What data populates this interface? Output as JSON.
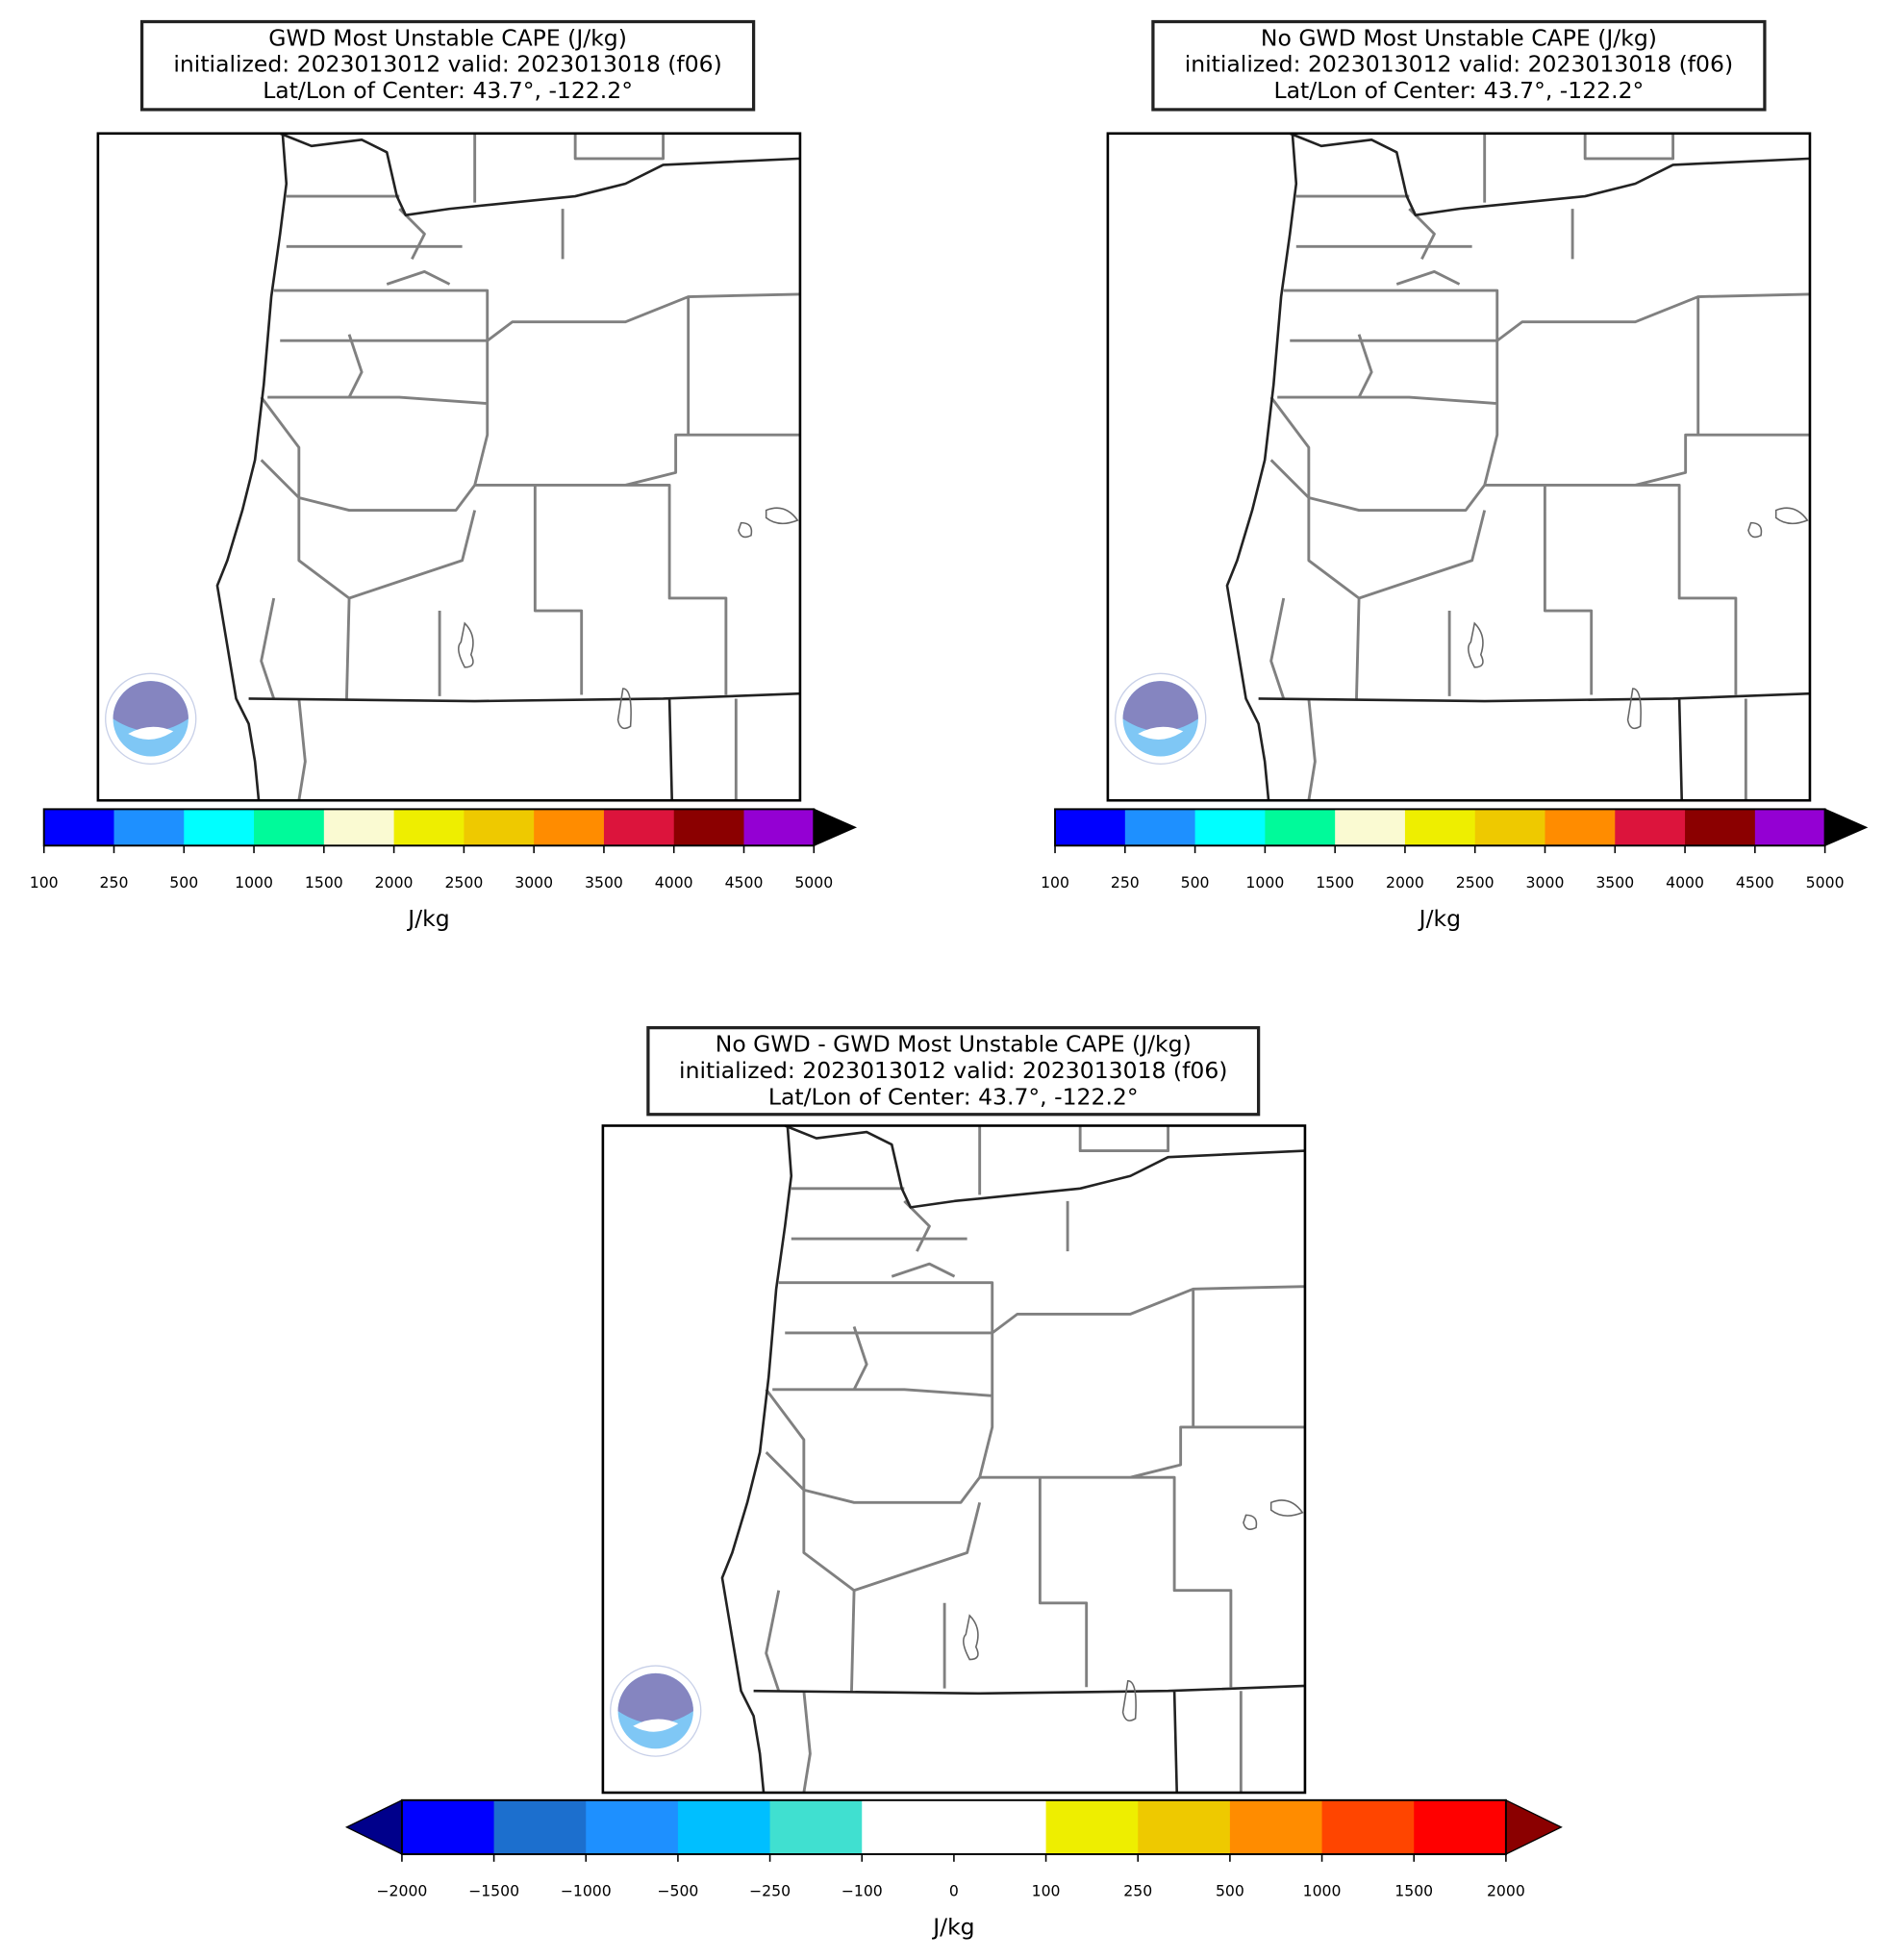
{
  "panels": [
    {
      "title": [
        "GWD Most Unstable CAPE (J/kg)",
        "initialized: 2023013012 valid: 2023013018 (f06)",
        "Lat/Lon of Center: 43.7°, -122.2°"
      ],
      "colorbar": {
        "label": "J/kg",
        "extend": "max",
        "extend_colors": {
          "max": "#000000"
        },
        "ticks": [
          100,
          250,
          500,
          1000,
          1500,
          2000,
          2500,
          3000,
          3500,
          4000,
          4500,
          5000
        ],
        "colors": [
          "#0000ff",
          "#1e90ff",
          "#00ffff",
          "#00fa9a",
          "#fafad2",
          "#eeee00",
          "#eec900",
          "#ff8c00",
          "#dc143c",
          "#8b0000",
          "#9400d3"
        ]
      }
    },
    {
      "title": [
        "No GWD Most Unstable CAPE (J/kg)",
        "initialized: 2023013012 valid: 2023013018 (f06)",
        "Lat/Lon of Center: 43.7°, -122.2°"
      ],
      "colorbar": {
        "label": "J/kg",
        "extend": "max",
        "extend_colors": {
          "max": "#000000"
        },
        "ticks": [
          100,
          250,
          500,
          1000,
          1500,
          2000,
          2500,
          3000,
          3500,
          4000,
          4500,
          5000
        ],
        "colors": [
          "#0000ff",
          "#1e90ff",
          "#00ffff",
          "#00fa9a",
          "#fafad2",
          "#eeee00",
          "#eec900",
          "#ff8c00",
          "#dc143c",
          "#8b0000",
          "#9400d3"
        ]
      }
    },
    {
      "title": [
        "No GWD - GWD Most Unstable CAPE (J/kg)",
        "initialized: 2023013012 valid: 2023013018 (f06)",
        "Lat/Lon of Center: 43.7°, -122.2°"
      ],
      "colorbar": {
        "label": "J/kg",
        "extend": "both",
        "extend_colors": {
          "min": "#00008b",
          "max": "#8b0000"
        },
        "ticks": [
          {
            "value": -2000,
            "label": "−2000"
          },
          {
            "value": -1500,
            "label": "−1500"
          },
          {
            "value": -1000,
            "label": "−1000"
          },
          {
            "value": -500,
            "label": "−500"
          },
          {
            "value": -250,
            "label": "−250"
          },
          {
            "value": -100,
            "label": "−100"
          },
          0,
          100,
          250,
          500,
          1000,
          1500,
          2000
        ],
        "colors": [
          "#0000ff",
          "#1c6fce",
          "#1e90ff",
          "#00bfff",
          "#40e0d0",
          "#ffffff",
          "#ffffff",
          "#eeee00",
          "#eec900",
          "#ff8c00",
          "#ff4500",
          "#ff0000"
        ]
      }
    }
  ]
}
